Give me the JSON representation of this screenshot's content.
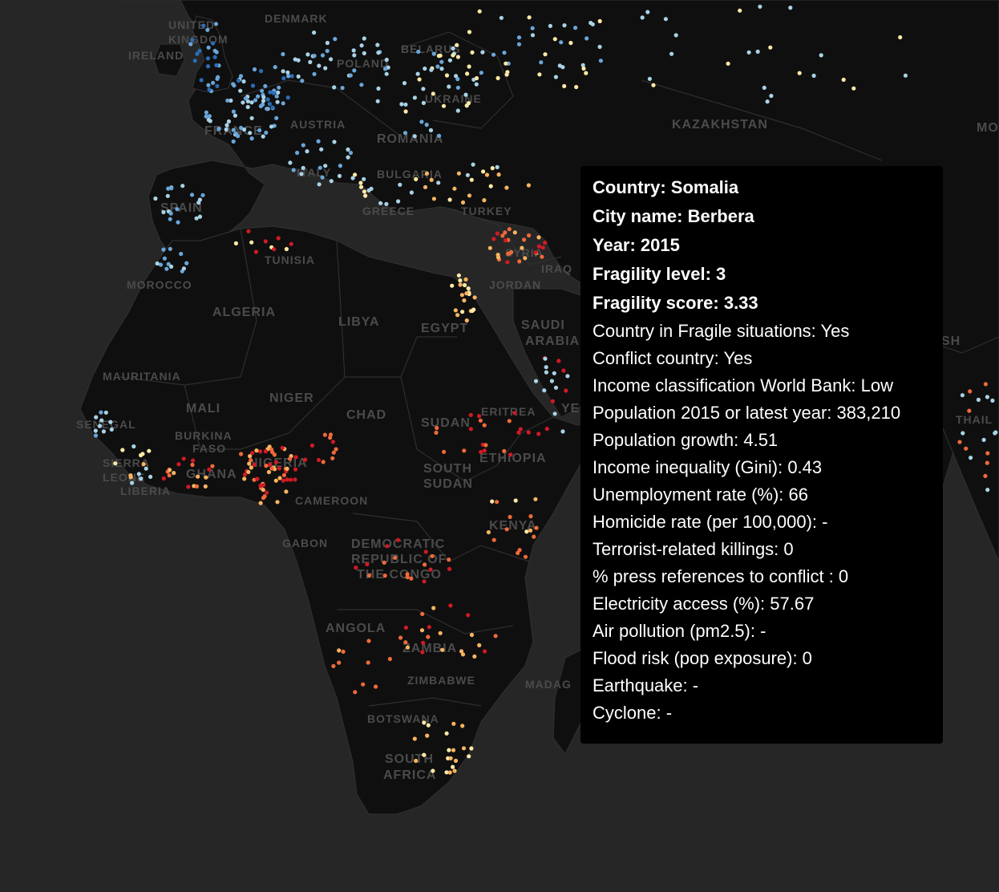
{
  "map": {
    "land_color": "#0f0f0f",
    "ocean_color": "#262626",
    "border_color": "#2e2e2e",
    "label_color": "#4b4b4b",
    "fragility_colors": {
      "level_1": "#2c6db5",
      "level_1b": "#6aa6d9",
      "level_2a": "#a9d2e6",
      "level_2b": "#fde9a6",
      "level_3a": "#f8b461",
      "level_3b": "#ef6a3a",
      "level_4": "#d11a25"
    },
    "country_labels": [
      "UNITED",
      "KINGDOM",
      "IRELAND",
      "DENMARK",
      "BELARUS",
      "POLAND",
      "UKRAINE",
      "KAZAKHSTAN",
      "MO",
      "FRANCE",
      "AUSTRIA",
      "ROMANIA",
      "ITALY",
      "BULGARIA",
      "SPAIN",
      "GREECE",
      "TURKEY",
      "TUNISIA",
      "SYRIA",
      "IRAQ",
      "MOROCCO",
      "JORDAN",
      "ALGERIA",
      "LIBYA",
      "EGYPT",
      "SAUDI",
      "ARABIA",
      "MAURITANIA",
      "MALI",
      "NIGER",
      "CHAD",
      "SUDAN",
      "ERITREA",
      "YE",
      "SENEGAL",
      "BURKINA",
      "FASO",
      "NIGERIA",
      "ETHIOPIA",
      "SIERRA",
      "LEONE",
      "GHANA",
      "LIBERIA",
      "CAMEROON",
      "SOUTH",
      "SUDAN",
      "KENYA",
      "GABON",
      "DEMOCRATIC",
      "REPUBLIC OF",
      "THE CONGO",
      "ANGOLA",
      "ZAMBIA",
      "ZIMBABWE",
      "MADAG",
      "BOTSWANA",
      "SOUTH",
      "AFRICA",
      "SH",
      "THAIL"
    ]
  },
  "tooltip": {
    "country": "Country: Somalia",
    "city": "City name: Berbera",
    "year": "Year: 2015",
    "fragility_level": "Fragility level: 3",
    "fragility_score": "Fragility score: 3.33",
    "fragile_situations": "Country in Fragile situations: Yes",
    "conflict_country": "Conflict country: Yes",
    "income_classification": "Income classification World Bank: Low",
    "population": "Population 2015 or latest year: 383,210",
    "population_growth": "Population growth: 4.51",
    "income_inequality": "Income inequality (Gini): 0.43",
    "unemployment": "Unemployment rate (%): 66",
    "homicide": "Homicide rate (per 100,000): -",
    "terrorist_killings": "Terrorist-related killings: 0",
    "press_references": "% press references to conflict : 0",
    "electricity": "Electricity access (%): 57.67",
    "air_pollution": "Air pollution (pm2.5): -",
    "flood_risk": "Flood risk (pop exposure): 0",
    "earthquake": "Earthquake: -",
    "cyclone": "Cyclone: -"
  }
}
